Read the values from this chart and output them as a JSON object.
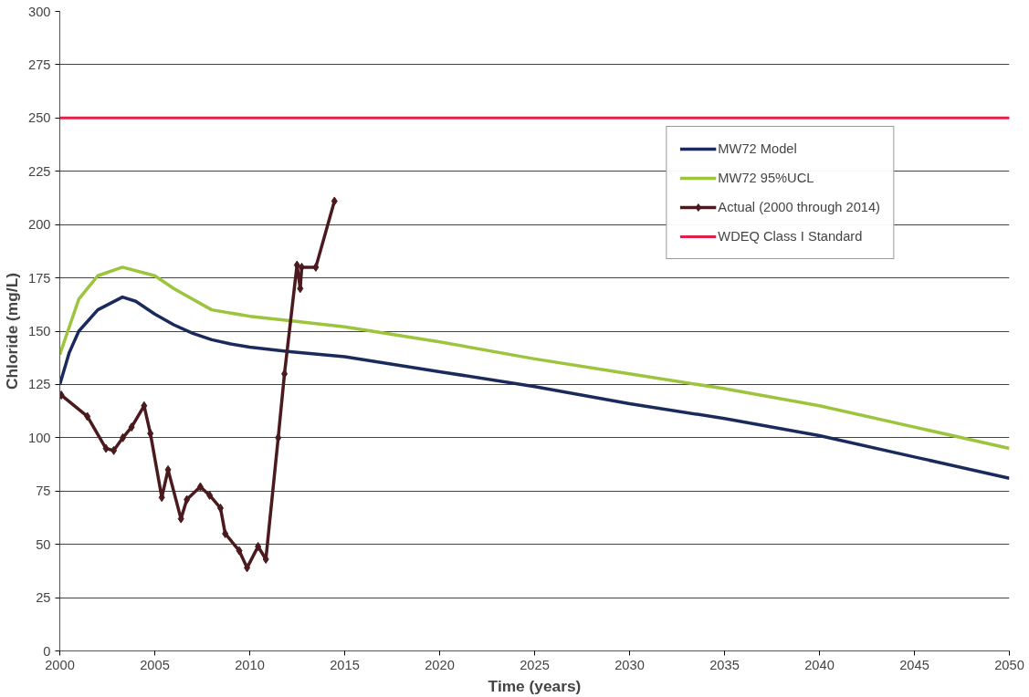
{
  "chart_data": {
    "type": "line",
    "xlabel": "Time (years)",
    "ylabel": "Chloride (mg/L)",
    "xlim": [
      2000,
      2050
    ],
    "xticks": [
      2000,
      2005,
      2010,
      2015,
      2020,
      2025,
      2030,
      2035,
      2040,
      2045,
      2050
    ],
    "ylim": [
      0,
      300
    ],
    "yticks": [
      0,
      25,
      50,
      75,
      100,
      125,
      150,
      175,
      200,
      225,
      250,
      275,
      300
    ],
    "grid": "y",
    "legend": "top right",
    "series": [
      {
        "name": "MW72 Model",
        "color": "#1b2a5c",
        "marker": "none",
        "x": [
          2000,
          2000.5,
          2001,
          2002,
          2003.3,
          2004,
          2005,
          2006,
          2007,
          2008,
          2009,
          2010,
          2012,
          2015,
          2020,
          2025,
          2030,
          2035,
          2040,
          2045,
          2050
        ],
        "values": [
          125,
          140,
          150,
          160,
          166,
          164,
          158,
          153,
          149,
          146,
          144,
          142.5,
          140.5,
          138,
          131,
          124,
          116,
          109,
          101,
          91,
          81
        ]
      },
      {
        "name": "MW72 95%UCL",
        "color": "#9cc43c",
        "marker": "none",
        "x": [
          2000,
          2001,
          2002,
          2003.3,
          2005,
          2006,
          2007,
          2008,
          2010,
          2012,
          2015,
          2020,
          2025,
          2030,
          2035,
          2040,
          2045,
          2050
        ],
        "values": [
          139,
          165,
          176,
          180,
          176,
          170,
          165,
          160,
          157,
          155,
          152,
          145,
          137,
          130,
          123,
          115,
          105,
          95
        ]
      },
      {
        "name": "Actual (2000 through 2014)",
        "color": "#4a1a1e",
        "marker": "diamond",
        "x": [
          2000.08,
          2001.45,
          2002.43,
          2002.84,
          2003.32,
          2003.78,
          2004.44,
          2004.77,
          2005.37,
          2005.7,
          2006.38,
          2006.69,
          2007.4,
          2007.89,
          2008.46,
          2008.71,
          2009.45,
          2009.86,
          2010.44,
          2010.85,
          2011.5,
          2011.83,
          2012.49,
          2012.66,
          2012.74,
          2013.48,
          2014.46
        ],
        "values": [
          120,
          110,
          95,
          94,
          100,
          105,
          115,
          102,
          72,
          85,
          62,
          71,
          77,
          73,
          67,
          55,
          47,
          39,
          49,
          43,
          100,
          130,
          181,
          170,
          180,
          180,
          211
        ]
      }
    ],
    "ref_lines": [
      {
        "axis": "y",
        "value": 250,
        "label": "WDEQ Class I Standard",
        "color": "#e0204a",
        "line_style": "solid"
      }
    ]
  }
}
